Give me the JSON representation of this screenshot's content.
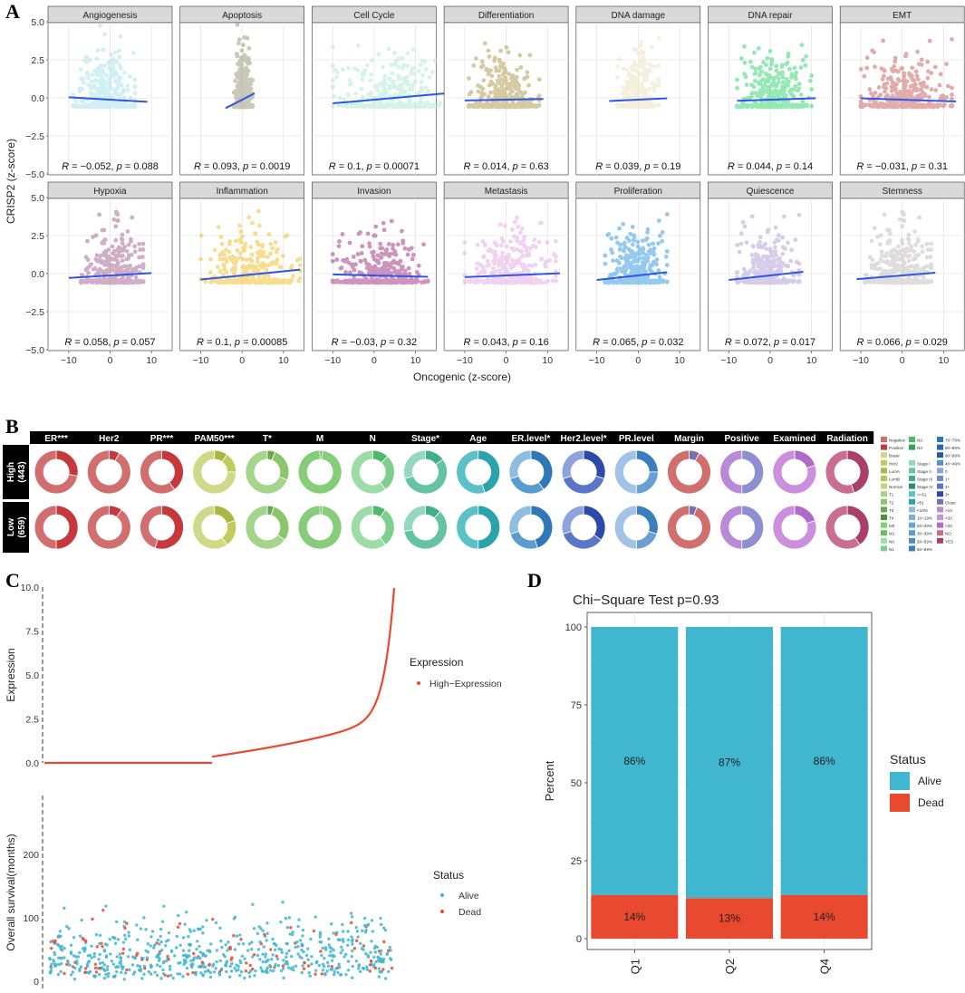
{
  "panel_labels": {
    "a": "A",
    "b": "B",
    "c": "C",
    "d": "D"
  },
  "colors": {
    "angiogenesis": "#aee3ea",
    "apoptosis": "#9f9d7e",
    "cellcycle": "#b3ecd6",
    "differentiation": "#b39f57",
    "dnadamage": "#eee5c3",
    "dnarepair": "#3fd87a",
    "emt": "#cb6a6a",
    "hypoxia": "#ab6c98",
    "inflammation": "#f2c236",
    "invasion": "#a53d8a",
    "metastasis": "#e7aee7",
    "proliferation": "#3f9fe3",
    "quiescence": "#b8a6da",
    "stemness": "#c6c0c0",
    "trend": "#2f55e8",
    "alive": "#41b6cf",
    "dead": "#e9492f",
    "high_expression": "#e9492f",
    "header_bg": "#000000",
    "strip_bg": "#d9d9d9"
  },
  "chart_data": [
    {
      "type": "scatter",
      "title": "",
      "ylabel": "CRISP2 (z-score)",
      "xlabel": "Oncogenic (z-score)",
      "ylim": [
        -5,
        5
      ],
      "yticks": [
        "5.0",
        "2.5",
        "0.0",
        "-2.5",
        "-5.0"
      ],
      "xticks": [
        "-10",
        "0",
        "10"
      ],
      "facets": [
        {
          "name": "Angiogenesis",
          "color_key": "angiogenesis",
          "r": "-0.052",
          "p": "0.088",
          "slope": -0.016,
          "xspan": [
            -10,
            9
          ],
          "spread": [
            -9,
            6
          ]
        },
        {
          "name": "Apoptosis",
          "color_key": "apoptosis",
          "r": "0.093",
          "p": "0.0019",
          "slope": 0.14,
          "xspan": [
            -4,
            3
          ],
          "spread": [
            -2,
            2.5
          ]
        },
        {
          "name": "Cell Cycle",
          "color_key": "cellcycle",
          "r": "0.1",
          "p": "0.00071",
          "slope": 0.024,
          "xspan": [
            -10,
            18
          ],
          "spread": [
            -10,
            18
          ]
        },
        {
          "name": "Differentiation",
          "color_key": "differentiation",
          "r": "0.014",
          "p": "0.63",
          "slope": 0.005,
          "xspan": [
            -10,
            9
          ],
          "spread": [
            -9,
            8
          ]
        },
        {
          "name": "DNA damage",
          "color_key": "dnadamage",
          "r": "0.039",
          "p": "0.19",
          "slope": 0.013,
          "xspan": [
            -7,
            7
          ],
          "spread": [
            -5,
            5
          ]
        },
        {
          "name": "DNA repair",
          "color_key": "dnarepair",
          "r": "0.044",
          "p": "0.14",
          "slope": 0.009,
          "xspan": [
            -8,
            11
          ],
          "spread": [
            -8,
            10
          ]
        },
        {
          "name": "EMT",
          "color_key": "emt",
          "r": "-0.031",
          "p": "0.31",
          "slope": -0.009,
          "xspan": [
            -10,
            13
          ],
          "spread": [
            -10,
            12
          ]
        },
        {
          "name": "Hypoxia",
          "color_key": "hypoxia",
          "r": "0.058",
          "p": "0.057",
          "slope": 0.016,
          "xspan": [
            -10,
            10
          ],
          "spread": [
            -7,
            8
          ]
        },
        {
          "name": "Inflammation",
          "color_key": "inflammation",
          "r": "0.1",
          "p": "0.00085",
          "slope": 0.027,
          "xspan": [
            -10,
            14
          ],
          "spread": [
            -10,
            14
          ]
        },
        {
          "name": "Invasion",
          "color_key": "invasion",
          "r": "-0.03",
          "p": "0.32",
          "slope": -0.007,
          "xspan": [
            -10,
            13
          ],
          "spread": [
            -10,
            13
          ]
        },
        {
          "name": "Metastasis",
          "color_key": "metastasis",
          "r": "0.043",
          "p": "0.16",
          "slope": 0.011,
          "xspan": [
            -10,
            13
          ],
          "spread": [
            -10,
            12
          ]
        },
        {
          "name": "Proliferation",
          "color_key": "proliferation",
          "r": "0.065",
          "p": "0.032",
          "slope": 0.03,
          "xspan": [
            -10,
            7
          ],
          "spread": [
            -8,
            7
          ]
        },
        {
          "name": "Quiescence",
          "color_key": "quiescence",
          "r": "0.072",
          "p": "0.017",
          "slope": 0.03,
          "xspan": [
            -10,
            8
          ],
          "spread": [
            -8,
            7
          ]
        },
        {
          "name": "Stemness",
          "color_key": "stemness",
          "r": "0.066",
          "p": "0.029",
          "slope": 0.022,
          "xspan": [
            -11,
            8
          ],
          "spread": [
            -9,
            7
          ]
        }
      ]
    },
    {
      "type": "pie",
      "title": "",
      "rows": [
        {
          "label": "High\n(443)",
          "label_line1": "High",
          "label_line2": "(443)"
        },
        {
          "label": "Low\n(659)",
          "label_line1": "Low",
          "label_line2": "(659)"
        }
      ],
      "columns": [
        {
          "label": "ER***",
          "hi": [
            [
              "#c5393c",
              0.28
            ],
            [
              "#d16f6f",
              0.72
            ]
          ],
          "lo": [
            [
              "#c5393c",
              0.5
            ],
            [
              "#d16f6f",
              0.5
            ]
          ]
        },
        {
          "label": "Her2",
          "hi": [
            [
              "#c5393c",
              0.08
            ],
            [
              "#d16f6f",
              0.92
            ]
          ],
          "lo": [
            [
              "#c5393c",
              0.1
            ],
            [
              "#d16f6f",
              0.9
            ]
          ]
        },
        {
          "label": "PR***",
          "hi": [
            [
              "#c5393c",
              0.4
            ],
            [
              "#d16f6f",
              0.6
            ]
          ],
          "lo": [
            [
              "#c5393c",
              0.55
            ],
            [
              "#d16f6f",
              0.45
            ]
          ]
        },
        {
          "label": "PAM50***",
          "hi": [
            [
              "#a8b840",
              0.1
            ],
            [
              "#c2cc5a",
              0.15
            ],
            [
              "#d0d988",
              0.75
            ]
          ],
          "lo": [
            [
              "#a8b840",
              0.2
            ],
            [
              "#c2cc5a",
              0.2
            ],
            [
              "#d0d988",
              0.6
            ]
          ]
        },
        {
          "label": "T*",
          "hi": [
            [
              "#6aa84f",
              0.06
            ],
            [
              "#8bc66a",
              0.25
            ],
            [
              "#a5d58a",
              0.69
            ]
          ],
          "lo": [
            [
              "#6aa84f",
              0.05
            ],
            [
              "#8bc66a",
              0.3
            ],
            [
              "#a5d58a",
              0.65
            ]
          ]
        },
        {
          "label": "M",
          "hi": [
            [
              "#6abd63",
              0.02
            ],
            [
              "#86cd7a",
              0.98
            ]
          ],
          "lo": [
            [
              "#6abd63",
              0.02
            ],
            [
              "#86cd7a",
              0.98
            ]
          ]
        },
        {
          "label": "N",
          "hi": [
            [
              "#4fb86b",
              0.12
            ],
            [
              "#7ccf8c",
              0.28
            ],
            [
              "#9ddca7",
              0.6
            ]
          ],
          "lo": [
            [
              "#4fb86b",
              0.1
            ],
            [
              "#7ccf8c",
              0.3
            ],
            [
              "#9ddca7",
              0.6
            ]
          ]
        },
        {
          "label": "Stage*",
          "hi": [
            [
              "#3fae8a",
              0.15
            ],
            [
              "#66c3a2",
              0.55
            ],
            [
              "#96d7bf",
              0.3
            ]
          ],
          "lo": [
            [
              "#3fae8a",
              0.12
            ],
            [
              "#66c3a2",
              0.6
            ],
            [
              "#96d7bf",
              0.28
            ]
          ]
        },
        {
          "label": "Age",
          "hi": [
            [
              "#2aa3ad",
              0.45
            ],
            [
              "#5cc1c6",
              0.55
            ]
          ],
          "lo": [
            [
              "#2aa3ad",
              0.5
            ],
            [
              "#5cc1c6",
              0.5
            ]
          ]
        },
        {
          "label": "ER.level*",
          "hi": [
            [
              "#2f78b5",
              0.4
            ],
            [
              "#5a9ccf",
              0.3
            ],
            [
              "#8fbde0",
              0.3
            ]
          ],
          "lo": [
            [
              "#2f78b5",
              0.45
            ],
            [
              "#5a9ccf",
              0.25
            ],
            [
              "#8fbde0",
              0.3
            ]
          ]
        },
        {
          "label": "Her2.level*",
          "hi": [
            [
              "#2c4aa7",
              0.3
            ],
            [
              "#5a76c8",
              0.4
            ],
            [
              "#8ea3dc",
              0.3
            ]
          ],
          "lo": [
            [
              "#2c4aa7",
              0.35
            ],
            [
              "#5a76c8",
              0.35
            ],
            [
              "#8ea3dc",
              0.3
            ]
          ]
        },
        {
          "label": "PR.level",
          "hi": [
            [
              "#3a7fbd",
              0.25
            ],
            [
              "#6b9fd3",
              0.25
            ],
            [
              "#a3c3e6",
              0.5
            ]
          ],
          "lo": [
            [
              "#3a7fbd",
              0.3
            ],
            [
              "#6b9fd3",
              0.2
            ],
            [
              "#a3c3e6",
              0.5
            ]
          ]
        },
        {
          "label": "Margin",
          "hi": [
            [
              "#7b6fb2",
              0.08
            ],
            [
              "#d16f6f",
              0.92
            ]
          ],
          "lo": [
            [
              "#7b6fb2",
              0.06
            ],
            [
              "#d16f6f",
              0.94
            ]
          ]
        },
        {
          "label": "Positive",
          "hi": [
            [
              "#8e8fd3",
              0.5
            ],
            [
              "#bb8ad6",
              0.5
            ]
          ],
          "lo": [
            [
              "#8e8fd3",
              0.5
            ],
            [
              "#bb8ad6",
              0.5
            ]
          ]
        },
        {
          "label": "Examined",
          "hi": [
            [
              "#b06ac8",
              0.2
            ],
            [
              "#cc8fdc",
              0.8
            ]
          ],
          "lo": [
            [
              "#b06ac8",
              0.2
            ],
            [
              "#cc8fdc",
              0.8
            ]
          ]
        },
        {
          "label": "Radiation",
          "hi": [
            [
              "#a93f6a",
              0.45
            ],
            [
              "#c86e92",
              0.55
            ]
          ],
          "lo": [
            [
              "#a93f6a",
              0.4
            ],
            [
              "#c86e92",
              0.6
            ]
          ]
        }
      ],
      "legend": [
        {
          "label": "Negative",
          "color": "#d16f6f"
        },
        {
          "label": "Positive",
          "color": "#c5393c"
        },
        {
          "label": "Basal",
          "color": "#d0d988"
        },
        {
          "label": "Her2",
          "color": "#c2cc5a"
        },
        {
          "label": "LumA",
          "color": "#a8b840"
        },
        {
          "label": "LumB",
          "color": "#b8c65a"
        },
        {
          "label": "Normal",
          "color": "#c8d27a"
        },
        {
          "label": "T1",
          "color": "#a5d58a"
        },
        {
          "label": "T2",
          "color": "#8bc66a"
        },
        {
          "label": "T3",
          "color": "#6aa84f"
        },
        {
          "label": "T4",
          "color": "#4f8f3c"
        },
        {
          "label": "M0",
          "color": "#86cd7a"
        },
        {
          "label": "M1",
          "color": "#6abd63"
        },
        {
          "label": "N0",
          "color": "#9ddca7"
        },
        {
          "label": "N1",
          "color": "#7ccf8c"
        },
        {
          "label": "N2",
          "color": "#4fb86b"
        },
        {
          "label": "N3",
          "color": "#34a156"
        },
        {
          "label": "",
          "color": "#ffffff"
        },
        {
          "label": "Stage I",
          "color": "#96d7bf"
        },
        {
          "label": "Stage II",
          "color": "#66c3a2"
        },
        {
          "label": "Stage III",
          "color": "#3fae8a"
        },
        {
          "label": "Stage IV",
          "color": "#2a8f70"
        },
        {
          "label": "<=51",
          "color": "#5cc1c6"
        },
        {
          "label": ">51",
          "color": "#2aa3ad"
        },
        {
          "label": "<10%",
          "color": "#8fbde0"
        },
        {
          "label": "10~19%",
          "color": "#7aaed8"
        },
        {
          "label": "20~29%",
          "color": "#6aa3d2"
        },
        {
          "label": "30~39%",
          "color": "#5a9ccf"
        },
        {
          "label": "50~59%",
          "color": "#4a8dc6"
        },
        {
          "label": "60~69%",
          "color": "#3a80bd"
        },
        {
          "label": "70~79%",
          "color": "#2f78b5"
        },
        {
          "label": "80~89%",
          "color": "#2a6aa8"
        },
        {
          "label": "90~99%",
          "color": "#255c9a"
        },
        {
          "label": "40~49%",
          "color": "#4f93c9"
        },
        {
          "label": "0",
          "color": "#8ea3dc"
        },
        {
          "label": "1+",
          "color": "#6e8ad0"
        },
        {
          "label": "2+",
          "color": "#5a76c8"
        },
        {
          "label": "3+",
          "color": "#2c4aa7"
        },
        {
          "label": "Close",
          "color": "#7b6fb2"
        },
        {
          "label": ">10",
          "color": "#bb8ad6"
        },
        {
          "label": "<20",
          "color": "#cc8fdc"
        },
        {
          "label": ">20",
          "color": "#b06ac8"
        },
        {
          "label": "NO",
          "color": "#c86e92"
        },
        {
          "label": "YES",
          "color": "#a93f6a"
        }
      ]
    },
    {
      "type": "scatter",
      "title": "",
      "top": {
        "ylabel": "Expression",
        "ylim": [
          0,
          10
        ],
        "yticks": [
          "10.0",
          "7.5",
          "5.0",
          "2.5",
          "0.0"
        ],
        "legend_title": "Expression",
        "legend_items": [
          "High−Expression"
        ],
        "n": 1102,
        "zero_fraction": 0.48
      },
      "bottom": {
        "ylabel": "Overall survival(months)",
        "ylim": [
          0,
          300
        ],
        "yticks": [
          "200",
          "100",
          "0"
        ],
        "legend_title": "Status",
        "legend_items": [
          "Alive",
          "Dead"
        ]
      }
    },
    {
      "type": "bar",
      "title": "Chi−Square Test  p=0.93",
      "xlabel": "",
      "ylabel": "Percent",
      "ylim": [
        0,
        100
      ],
      "yticks": [
        "0",
        "25",
        "50",
        "75",
        "100"
      ],
      "categories": [
        "Q1",
        "Q2",
        "Q4"
      ],
      "series": [
        {
          "name": "Dead",
          "values": [
            14,
            13,
            14
          ],
          "labels": [
            "14%",
            "13%",
            "14%"
          ]
        },
        {
          "name": "Alive",
          "values": [
            86,
            87,
            86
          ],
          "labels": [
            "86%",
            "87%",
            "86%"
          ]
        }
      ],
      "legend_title": "Status",
      "legend_items": [
        "Alive",
        "Dead"
      ]
    }
  ]
}
